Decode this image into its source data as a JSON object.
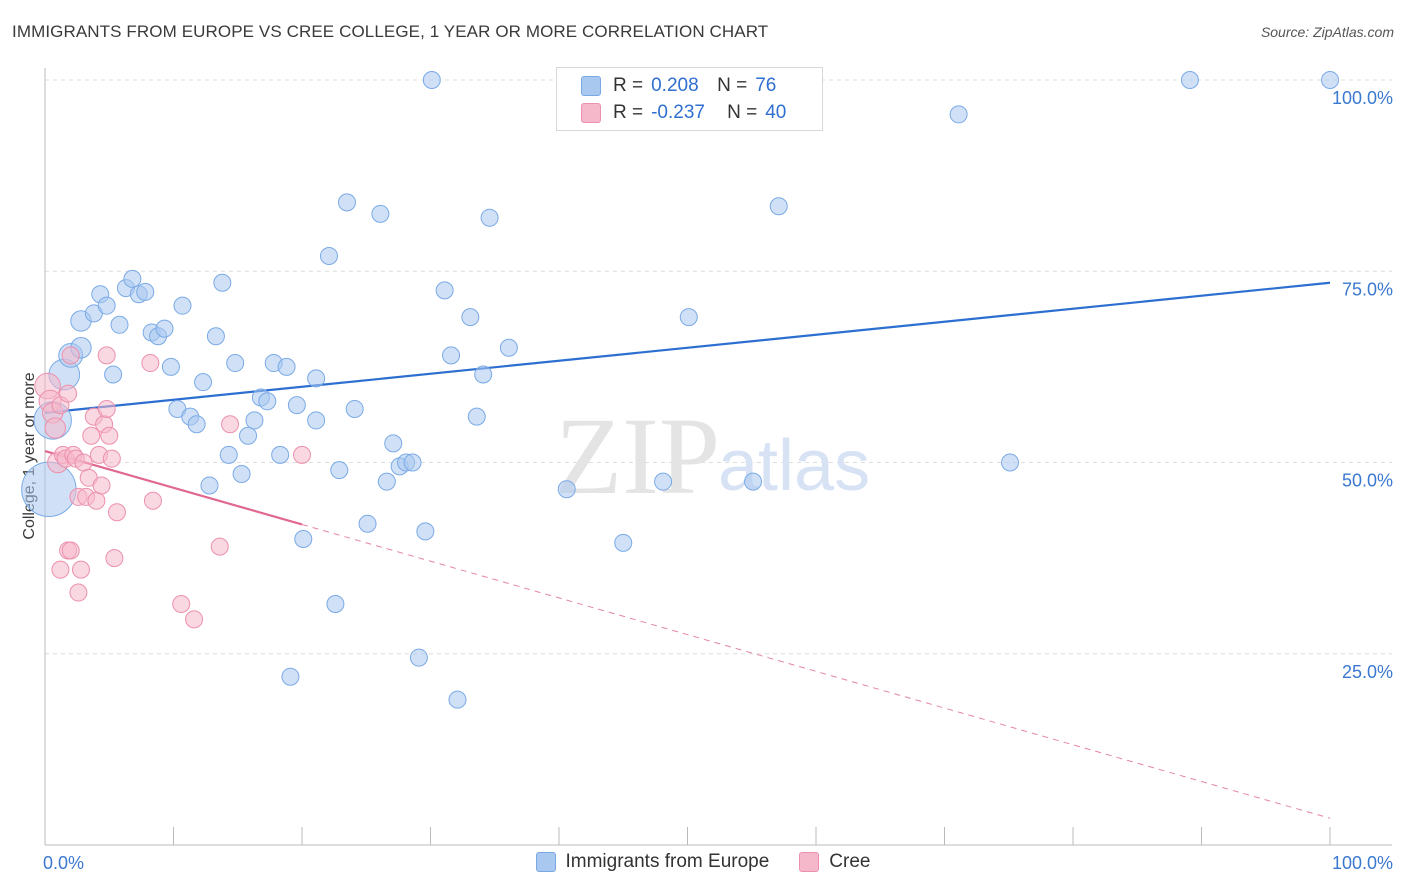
{
  "title": "IMMIGRANTS FROM EUROPE VS CREE COLLEGE, 1 YEAR OR MORE CORRELATION CHART",
  "source": "Source: ZipAtlas.com",
  "watermark": {
    "zip": "ZIP",
    "atlas": "atlas"
  },
  "legend": {
    "r_label": "R =",
    "n_label": "N =",
    "rows": [
      {
        "r": "0.208",
        "n": "76"
      },
      {
        "r": "-0.237",
        "n": "40"
      }
    ]
  },
  "colors": {
    "blue_fill": "#a9c8f0",
    "blue_stroke": "#7aaae6",
    "blue_line": "#2d6fd0",
    "pink_fill": "#f5b8cb",
    "pink_stroke": "#ec90ad",
    "pink_line": "#e06890",
    "grid": "#dddddd",
    "axis_text": "#3b78d0"
  },
  "chart_data": {
    "type": "scatter",
    "title": "IMMIGRANTS FROM EUROPE VS CREE COLLEGE, 1 YEAR OR MORE CORRELATION CHART",
    "xlabel": "",
    "ylabel": "College, 1 year or more",
    "xlim": [
      0,
      100
    ],
    "ylim": [
      0,
      102
    ],
    "x_tick_labels": [
      "0.0%",
      "100.0%"
    ],
    "y_tick_labels": [
      "25.0%",
      "50.0%",
      "75.0%",
      "100.0%"
    ],
    "y_ticks": [
      25,
      50,
      75,
      100
    ],
    "grid": true,
    "legend_position": "top-center",
    "series": [
      {
        "name": "Immigrants from Europe",
        "r": 0.208,
        "n": 76,
        "trend": {
          "x": [
            0,
            100
          ],
          "y": [
            56.5,
            73.5
          ],
          "dashed_from": null
        },
        "points": [
          [
            0.3,
            46.5,
            3.2
          ],
          [
            0.6,
            55.5,
            2.2
          ],
          [
            1.5,
            61.5,
            1.8
          ],
          [
            2.0,
            64.0,
            1.4
          ],
          [
            2.8,
            65.0,
            1.2
          ],
          [
            2.8,
            68.5,
            1.2
          ],
          [
            3.8,
            69.5,
            1.0
          ],
          [
            4.3,
            72.0,
            1.0
          ],
          [
            4.8,
            70.5,
            1.0
          ],
          [
            5.3,
            61.5,
            1.0
          ],
          [
            5.8,
            68.0,
            1.0
          ],
          [
            6.3,
            72.8,
            1.0
          ],
          [
            6.8,
            74.0,
            1.0
          ],
          [
            7.3,
            72.0,
            1.0
          ],
          [
            7.8,
            72.3,
            1.0
          ],
          [
            8.3,
            67.0,
            1.0
          ],
          [
            8.8,
            66.5,
            1.0
          ],
          [
            9.3,
            67.5,
            1.0
          ],
          [
            9.8,
            62.5,
            1.0
          ],
          [
            10.3,
            57.0,
            1.0
          ],
          [
            10.7,
            70.5,
            1.0
          ],
          [
            11.3,
            56.0,
            1.0
          ],
          [
            11.8,
            55.0,
            1.0
          ],
          [
            12.3,
            60.5,
            1.0
          ],
          [
            12.8,
            47.0,
            1.0
          ],
          [
            13.3,
            66.5,
            1.0
          ],
          [
            13.8,
            73.5,
            1.0
          ],
          [
            14.3,
            51.0,
            1.0
          ],
          [
            14.8,
            63.0,
            1.0
          ],
          [
            15.3,
            48.5,
            1.0
          ],
          [
            15.8,
            53.5,
            1.0
          ],
          [
            16.3,
            55.5,
            1.0
          ],
          [
            16.8,
            58.5,
            1.0
          ],
          [
            17.3,
            58.0,
            1.0
          ],
          [
            17.8,
            63.0,
            1.0
          ],
          [
            18.3,
            51.0,
            1.0
          ],
          [
            18.8,
            62.5,
            1.0
          ],
          [
            19.1,
            22.0,
            1.0
          ],
          [
            19.6,
            57.5,
            1.0
          ],
          [
            20.1,
            40.0,
            1.0
          ],
          [
            21.1,
            55.5,
            1.0
          ],
          [
            21.1,
            61.0,
            1.0
          ],
          [
            22.1,
            77.0,
            1.0
          ],
          [
            22.6,
            31.5,
            1.0
          ],
          [
            22.9,
            49.0,
            1.0
          ],
          [
            23.5,
            84.0,
            1.0
          ],
          [
            24.1,
            57.0,
            1.0
          ],
          [
            25.1,
            42.0,
            1.0
          ],
          [
            26.1,
            82.5,
            1.0
          ],
          [
            26.6,
            47.5,
            1.0
          ],
          [
            27.1,
            52.5,
            1.0
          ],
          [
            27.6,
            49.5,
            1.0
          ],
          [
            28.1,
            50.0,
            1.0
          ],
          [
            28.6,
            50.0,
            1.0
          ],
          [
            29.1,
            24.5,
            1.0
          ],
          [
            29.6,
            41.0,
            1.0
          ],
          [
            30.1,
            100.0,
            1.0
          ],
          [
            31.1,
            72.5,
            1.0
          ],
          [
            31.6,
            64.0,
            1.0
          ],
          [
            32.1,
            19.0,
            1.0
          ],
          [
            33.1,
            69.0,
            1.0
          ],
          [
            33.6,
            56.0,
            1.0
          ],
          [
            34.1,
            61.5,
            1.0
          ],
          [
            34.6,
            82.0,
            1.0
          ],
          [
            36.1,
            65.0,
            1.0
          ],
          [
            40.6,
            46.5,
            1.0
          ],
          [
            45.0,
            39.5,
            1.0
          ],
          [
            48.1,
            47.5,
            1.0
          ],
          [
            50.1,
            69.0,
            1.0
          ],
          [
            55.1,
            47.5,
            1.0
          ],
          [
            57.1,
            83.5,
            1.0
          ],
          [
            71.1,
            95.5,
            1.0
          ],
          [
            75.1,
            50.0,
            1.0
          ],
          [
            89.1,
            100.0,
            1.0
          ],
          [
            100.0,
            100.0,
            1.0
          ]
        ]
      },
      {
        "name": "Cree",
        "r": -0.237,
        "n": 40,
        "trend": {
          "x": [
            0,
            100
          ],
          "y": [
            51.5,
            3.5
          ],
          "dashed_from": 20
        },
        "points": [
          [
            0.2,
            60.0,
            1.5
          ],
          [
            0.4,
            58.0,
            1.3
          ],
          [
            0.6,
            56.5,
            1.2
          ],
          [
            0.8,
            54.5,
            1.2
          ],
          [
            1.0,
            50.0,
            1.2
          ],
          [
            1.2,
            57.5,
            1.0
          ],
          [
            1.4,
            51.0,
            1.0
          ],
          [
            1.6,
            50.5,
            1.0
          ],
          [
            1.8,
            59.0,
            1.0
          ],
          [
            2.0,
            64.0,
            1.0
          ],
          [
            2.2,
            51.0,
            1.0
          ],
          [
            2.4,
            50.5,
            1.0
          ],
          [
            2.6,
            45.5,
            1.0
          ],
          [
            2.8,
            36.0,
            1.0
          ],
          [
            3.0,
            50.0,
            1.0
          ],
          [
            3.2,
            45.5,
            1.0
          ],
          [
            3.4,
            48.0,
            1.0
          ],
          [
            3.6,
            53.5,
            1.0
          ],
          [
            3.8,
            56.0,
            1.0
          ],
          [
            4.0,
            45.0,
            1.0
          ],
          [
            4.2,
            51.0,
            1.0
          ],
          [
            4.4,
            47.0,
            1.0
          ],
          [
            4.6,
            55.0,
            1.0
          ],
          [
            4.8,
            57.0,
            1.0
          ],
          [
            5.0,
            53.5,
            1.0
          ],
          [
            1.8,
            38.5,
            1.0
          ],
          [
            2.0,
            38.5,
            1.0
          ],
          [
            1.2,
            36.0,
            1.0
          ],
          [
            2.6,
            33.0,
            1.0
          ],
          [
            4.8,
            64.0,
            1.0
          ],
          [
            5.2,
            50.5,
            1.0
          ],
          [
            5.4,
            37.5,
            1.0
          ],
          [
            5.6,
            43.5,
            1.0
          ],
          [
            8.2,
            63.0,
            1.0
          ],
          [
            8.4,
            45.0,
            1.0
          ],
          [
            10.6,
            31.5,
            1.0
          ],
          [
            11.6,
            29.5,
            1.0
          ],
          [
            13.6,
            39.0,
            1.0
          ],
          [
            14.4,
            55.0,
            1.0
          ],
          [
            20.0,
            51.0,
            1.0
          ]
        ]
      }
    ]
  }
}
